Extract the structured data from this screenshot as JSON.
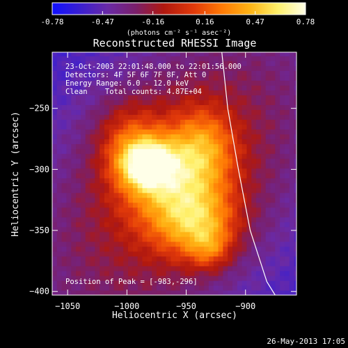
{
  "figure": {
    "title": "Reconstructed RHESSI Image",
    "footer_timestamp": "26-May-2013 17:05"
  },
  "colorbar": {
    "ticks": [
      "-0.78",
      "-0.47",
      "-0.16",
      "0.16",
      "0.47",
      "0.78"
    ],
    "tick_values": [
      -0.78,
      -0.47,
      -0.16,
      0.16,
      0.47,
      0.78
    ],
    "range": [
      -0.78,
      0.78
    ],
    "unit_label": "(photons cm⁻² s⁻¹ asec⁻²)",
    "colormap": [
      "#1010ff",
      "#3a1fd0",
      "#6a2aa6",
      "#7a1f6a",
      "#b0180f",
      "#e23a0a",
      "#ff7a05",
      "#ffb314",
      "#fff06a",
      "#ffffe8"
    ]
  },
  "annotations": {
    "line1": "23-Oct-2003 22:01:48.000 to 22:01:56.000",
    "line2": "Detectors: 4F 5F 6F 7F 8F, Att 0",
    "line3": "Energy Range: 6.0 - 12.0 keV",
    "line4": "Clean    Total counts: 4.87E+04",
    "peak": "Position of Peak = [-983,-296]"
  },
  "chart_data": {
    "type": "heatmap",
    "title": "Reconstructed RHESSI Image",
    "xlabel": "Heliocentric X (arcsec)",
    "ylabel": "Heliocentric Y (arcsec)",
    "xlim": [
      -1063,
      -857
    ],
    "ylim": [
      -403,
      -204
    ],
    "xticks": [
      -1050,
      -1000,
      -950,
      -900
    ],
    "yticks": [
      -250,
      -300,
      -350,
      -400
    ],
    "xtick_labels": [
      "−1050",
      "−1000",
      "−950",
      "−900"
    ],
    "ytick_labels": [
      "−250",
      "−300",
      "−350",
      "−400"
    ],
    "peak_position": [
      -983,
      -296
    ],
    "limb_curve": {
      "points": [
        [
          -920,
          -204
        ],
        [
          -915,
          -250
        ],
        [
          -906,
          -300
        ],
        [
          -896,
          -350
        ],
        [
          -882,
          -392
        ],
        [
          -875,
          -403
        ]
      ],
      "color": "#ffffff"
    },
    "sources": [
      {
        "x": -983,
        "y": -296,
        "sx": 16,
        "sy": 14,
        "amp": 0.78
      },
      {
        "x": -960,
        "y": -310,
        "sx": 30,
        "sy": 30,
        "amp": 0.52
      },
      {
        "x": -940,
        "y": -345,
        "sx": 24,
        "sy": 20,
        "amp": 0.48
      },
      {
        "x": -1000,
        "y": -275,
        "sx": 18,
        "sy": 22,
        "amp": 0.3
      },
      {
        "x": -935,
        "y": -280,
        "sx": 18,
        "sy": 22,
        "amp": 0.36
      },
      {
        "x": -930,
        "y": -365,
        "sx": 12,
        "sy": 12,
        "amp": 0.3
      }
    ],
    "background": -0.62
  }
}
